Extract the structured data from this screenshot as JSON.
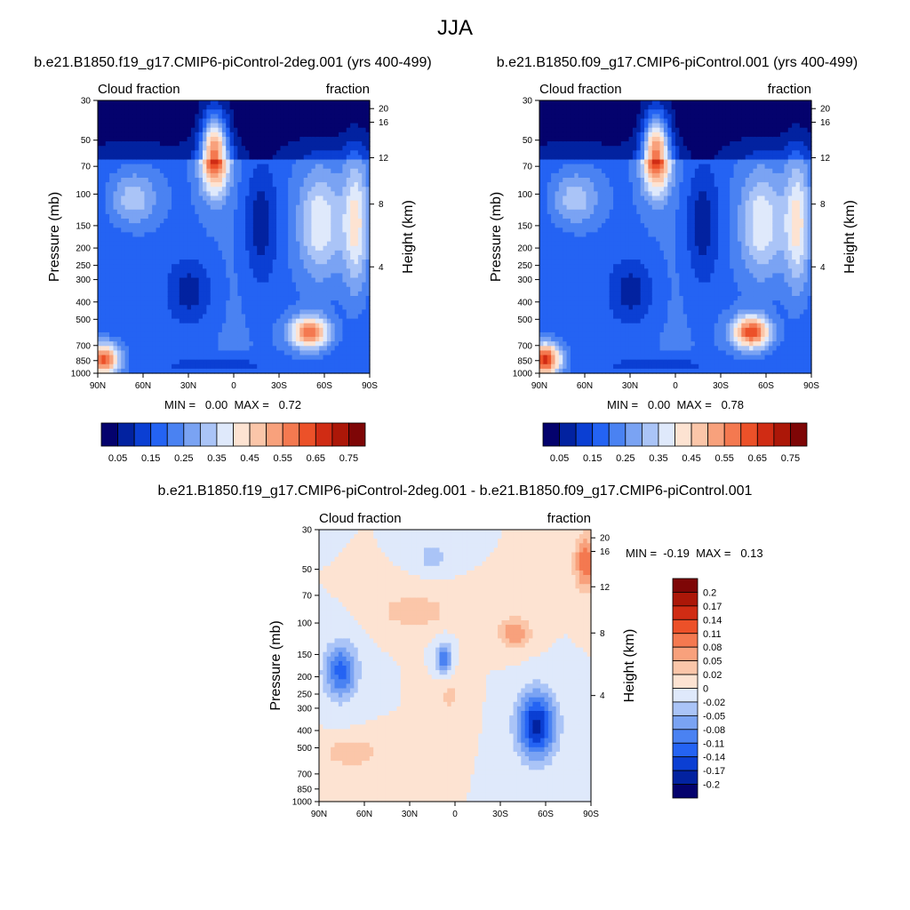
{
  "figure": {
    "title": "JJA"
  },
  "chart_data": [
    {
      "type": "heatmap",
      "title": "b.e21.B1850.f19_g17.CMIP6-piControl-2deg.001 (yrs 400-499)",
      "left_label": "Cloud fraction",
      "right_label": "fraction",
      "xlabel": "",
      "ylabel": "Pressure (mb)",
      "y2label": "Height (km)",
      "x_ticks": [
        "90N",
        "60N",
        "30N",
        "0",
        "30S",
        "60S",
        "90S"
      ],
      "y_ticks": [
        "30",
        "50",
        "70",
        "100",
        "150",
        "200",
        "250",
        "300",
        "400",
        "500",
        "700",
        "850",
        "1000"
      ],
      "y2_ticks": [
        "20",
        "16",
        "12",
        "8",
        "4"
      ],
      "stats": "MIN =   0.00  MAX =   0.72",
      "colorbar_labels": [
        "0.05",
        "0.15",
        "0.25",
        "0.35",
        "0.45",
        "0.55",
        "0.65",
        "0.75"
      ],
      "colorbar_colors": [
        "#04026d",
        "#0222a0",
        "#0b3fd3",
        "#2463f3",
        "#4a82f2",
        "#7aa3f3",
        "#aac4f7",
        "#dfe9fb",
        "#fde3d2",
        "#fbc6a9",
        "#f8a17c",
        "#f47950",
        "#ec5129",
        "#d02c14",
        "#ac1708",
        "#7e0606"
      ],
      "z_range": [
        0,
        0.8
      ]
    },
    {
      "type": "heatmap",
      "title": "b.e21.B1850.f09_g17.CMIP6-piControl.001 (yrs 400-499)",
      "left_label": "Cloud fraction",
      "right_label": "fraction",
      "xlabel": "",
      "ylabel": "Pressure (mb)",
      "y2label": "Height (km)",
      "x_ticks": [
        "90N",
        "60N",
        "30N",
        "0",
        "30S",
        "60S",
        "90S"
      ],
      "y_ticks": [
        "30",
        "50",
        "70",
        "100",
        "150",
        "200",
        "250",
        "300",
        "400",
        "500",
        "700",
        "850",
        "1000"
      ],
      "y2_ticks": [
        "20",
        "16",
        "12",
        "8",
        "4"
      ],
      "stats": "MIN =   0.00  MAX =   0.78",
      "colorbar_labels": [
        "0.05",
        "0.15",
        "0.25",
        "0.35",
        "0.45",
        "0.55",
        "0.65",
        "0.75"
      ],
      "colorbar_colors": [
        "#04026d",
        "#0222a0",
        "#0b3fd3",
        "#2463f3",
        "#4a82f2",
        "#7aa3f3",
        "#aac4f7",
        "#dfe9fb",
        "#fde3d2",
        "#fbc6a9",
        "#f8a17c",
        "#f47950",
        "#ec5129",
        "#d02c14",
        "#ac1708",
        "#7e0606"
      ],
      "z_range": [
        0,
        0.8
      ]
    },
    {
      "type": "heatmap",
      "title": "b.e21.B1850.f19_g17.CMIP6-piControl-2deg.001 - b.e21.B1850.f09_g17.CMIP6-piControl.001",
      "left_label": "Cloud fraction",
      "right_label": "fraction",
      "xlabel": "",
      "ylabel": "Pressure (mb)",
      "y2label": "Height (km)",
      "x_ticks": [
        "90N",
        "60N",
        "30N",
        "0",
        "30S",
        "60S",
        "90S"
      ],
      "y_ticks": [
        "30",
        "50",
        "70",
        "100",
        "150",
        "200",
        "250",
        "300",
        "400",
        "500",
        "700",
        "850",
        "1000"
      ],
      "y2_ticks": [
        "20",
        "16",
        "12",
        "8",
        "4"
      ],
      "stats": "MIN =  -0.19  MAX =   0.13",
      "colorbar_labels": [
        "0.2",
        "0.17",
        "0.14",
        "0.11",
        "0.08",
        "0.05",
        "0.02",
        "0",
        "-0.02",
        "-0.05",
        "-0.08",
        "-0.11",
        "-0.14",
        "-0.17",
        "-0.2"
      ],
      "colorbar_colors": [
        "#7e0606",
        "#ac1708",
        "#d02c14",
        "#ec5129",
        "#f47950",
        "#f8a17c",
        "#fbc6a9",
        "#fde3d2",
        "#dfe9fb",
        "#aac4f7",
        "#7aa3f3",
        "#4a82f2",
        "#2463f3",
        "#0b3fd3",
        "#0222a0",
        "#04026d"
      ],
      "z_range": [
        -0.2,
        0.2
      ]
    }
  ]
}
